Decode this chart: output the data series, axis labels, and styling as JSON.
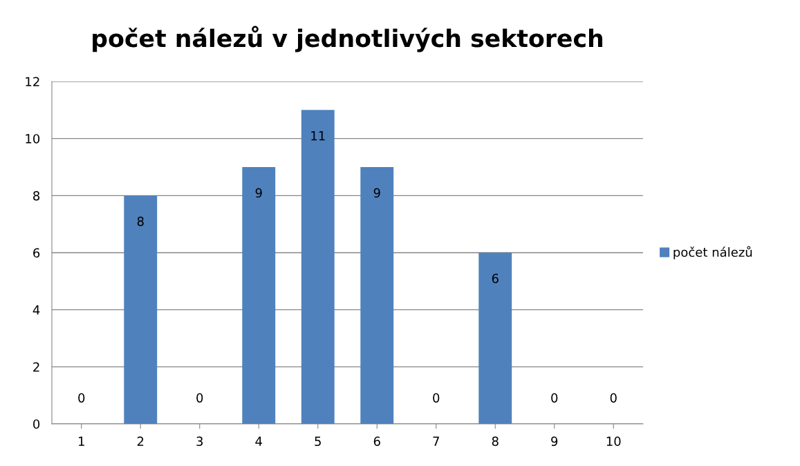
{
  "chart_data": {
    "type": "bar",
    "title": "počet nálezů v jednotlivých sektorech",
    "categories": [
      "1",
      "2",
      "3",
      "4",
      "5",
      "6",
      "7",
      "8",
      "9",
      "10"
    ],
    "series": [
      {
        "name": "počet nálezů",
        "color": "#4f81bd",
        "values": [
          0,
          8,
          0,
          9,
          11,
          9,
          0,
          6,
          0,
          0
        ]
      }
    ],
    "ylim": [
      0,
      12
    ],
    "yticks": [
      0,
      2,
      4,
      6,
      8,
      10,
      12
    ],
    "grid": "y",
    "legend": "right",
    "data_labels": true
  }
}
